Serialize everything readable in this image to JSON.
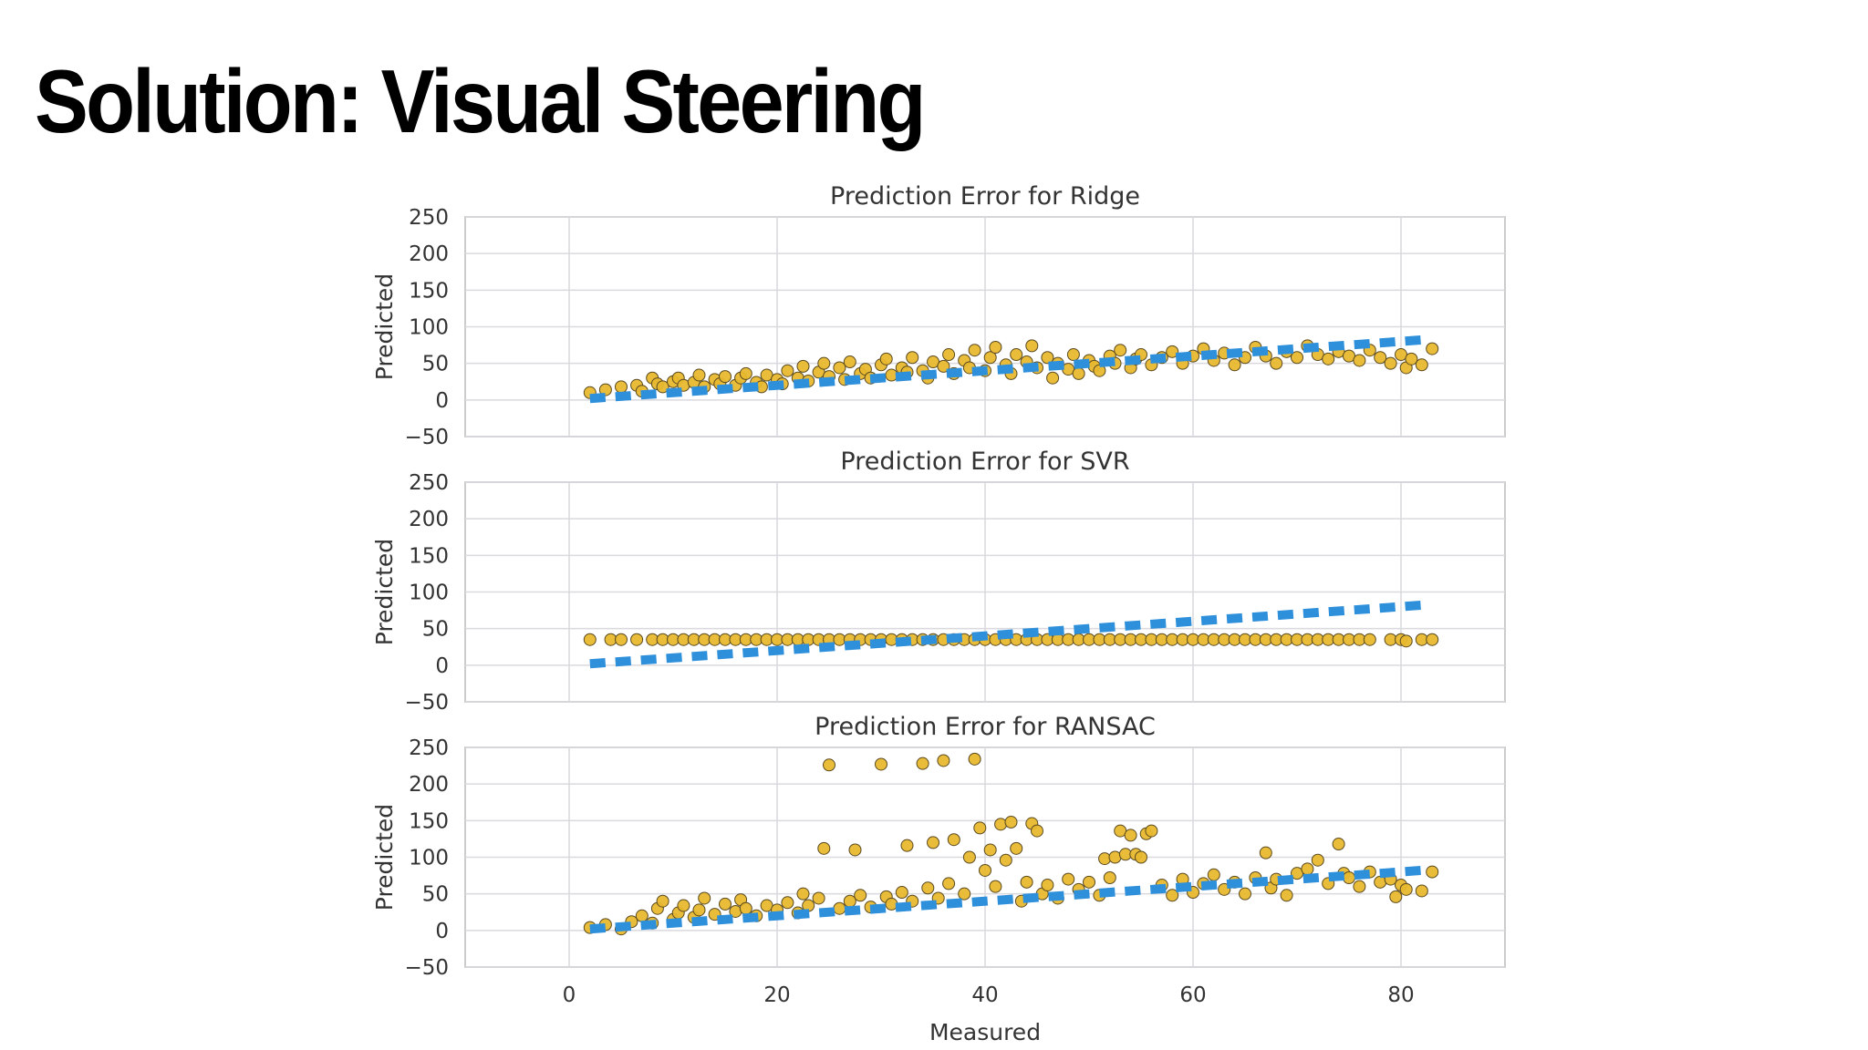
{
  "slide": {
    "title": "Solution: Visual Steering"
  },
  "colors": {
    "points": "#e8b82e",
    "point_edge": "#5a4a20",
    "identity_line": "#2e8fdb",
    "grid": "#d9d9de",
    "frame": "#cccccc"
  },
  "chart_data": {
    "type": "scatter",
    "xlabel": "Measured",
    "xlim": [
      -10,
      90
    ],
    "xticks": [
      0,
      20,
      40,
      60,
      80
    ],
    "grid": true,
    "panels": [
      {
        "title": "Prediction Error for Ridge",
        "ylabel": "Predicted",
        "ylim": [
          -50,
          250
        ],
        "yticks": [
          -50,
          0,
          50,
          100,
          150,
          200,
          250
        ],
        "identity_line": [
          [
            2,
            2
          ],
          [
            82,
            82
          ]
        ],
        "points": [
          [
            2,
            10
          ],
          [
            3.5,
            14
          ],
          [
            5,
            18
          ],
          [
            6.5,
            20
          ],
          [
            7,
            12
          ],
          [
            8,
            30
          ],
          [
            8.5,
            22
          ],
          [
            9,
            18
          ],
          [
            10,
            25
          ],
          [
            10.5,
            30
          ],
          [
            11,
            20
          ],
          [
            12,
            24
          ],
          [
            12.5,
            34
          ],
          [
            13,
            18
          ],
          [
            14,
            28
          ],
          [
            14.5,
            22
          ],
          [
            15,
            32
          ],
          [
            16,
            20
          ],
          [
            16.5,
            30
          ],
          [
            17,
            36
          ],
          [
            18,
            24
          ],
          [
            18.5,
            18
          ],
          [
            19,
            34
          ],
          [
            20,
            28
          ],
          [
            20.5,
            22
          ],
          [
            21,
            40
          ],
          [
            22,
            30
          ],
          [
            22.5,
            46
          ],
          [
            23,
            26
          ],
          [
            24,
            38
          ],
          [
            24.5,
            50
          ],
          [
            25,
            32
          ],
          [
            26,
            44
          ],
          [
            26.5,
            28
          ],
          [
            27,
            52
          ],
          [
            28,
            36
          ],
          [
            28.5,
            42
          ],
          [
            29,
            30
          ],
          [
            30,
            48
          ],
          [
            30.5,
            56
          ],
          [
            31,
            34
          ],
          [
            32,
            44
          ],
          [
            32.5,
            38
          ],
          [
            33,
            58
          ],
          [
            34,
            40
          ],
          [
            34.5,
            30
          ],
          [
            35,
            52
          ],
          [
            36,
            46
          ],
          [
            36.5,
            62
          ],
          [
            37,
            36
          ],
          [
            38,
            54
          ],
          [
            38.5,
            44
          ],
          [
            39,
            68
          ],
          [
            40,
            40
          ],
          [
            40.5,
            58
          ],
          [
            41,
            72
          ],
          [
            42,
            48
          ],
          [
            42.5,
            36
          ],
          [
            43,
            62
          ],
          [
            44,
            52
          ],
          [
            44.5,
            74
          ],
          [
            45,
            44
          ],
          [
            46,
            58
          ],
          [
            46.5,
            30
          ],
          [
            47,
            50
          ],
          [
            48,
            42
          ],
          [
            48.5,
            62
          ],
          [
            49,
            36
          ],
          [
            50,
            54
          ],
          [
            50.5,
            46
          ],
          [
            51,
            40
          ],
          [
            52,
            60
          ],
          [
            52.5,
            50
          ],
          [
            53,
            68
          ],
          [
            54,
            44
          ],
          [
            54.5,
            56
          ],
          [
            55,
            62
          ],
          [
            56,
            48
          ],
          [
            57,
            58
          ],
          [
            58,
            66
          ],
          [
            59,
            50
          ],
          [
            60,
            60
          ],
          [
            61,
            70
          ],
          [
            62,
            54
          ],
          [
            63,
            64
          ],
          [
            64,
            48
          ],
          [
            65,
            58
          ],
          [
            66,
            72
          ],
          [
            67,
            60
          ],
          [
            68,
            50
          ],
          [
            69,
            66
          ],
          [
            70,
            58
          ],
          [
            71,
            74
          ],
          [
            72,
            62
          ],
          [
            73,
            56
          ],
          [
            74,
            66
          ],
          [
            75,
            60
          ],
          [
            76,
            54
          ],
          [
            77,
            68
          ],
          [
            78,
            58
          ],
          [
            79,
            50
          ],
          [
            80,
            62
          ],
          [
            80.5,
            44
          ],
          [
            81,
            56
          ],
          [
            82,
            48
          ],
          [
            83,
            70
          ]
        ]
      },
      {
        "title": "Prediction Error for SVR",
        "ylabel": "Predicted",
        "ylim": [
          -50,
          250
        ],
        "yticks": [
          -50,
          0,
          50,
          100,
          150,
          200,
          250
        ],
        "identity_line": [
          [
            2,
            2
          ],
          [
            82,
            82
          ]
        ],
        "points": [
          [
            2,
            35
          ],
          [
            4,
            35
          ],
          [
            5,
            35
          ],
          [
            6.5,
            35
          ],
          [
            8,
            35
          ],
          [
            9,
            35
          ],
          [
            10,
            35
          ],
          [
            11,
            35
          ],
          [
            12,
            35
          ],
          [
            13,
            35
          ],
          [
            14,
            35
          ],
          [
            15,
            35
          ],
          [
            16,
            35
          ],
          [
            17,
            35
          ],
          [
            18,
            35
          ],
          [
            19,
            35
          ],
          [
            20,
            35
          ],
          [
            21,
            35
          ],
          [
            22,
            35
          ],
          [
            23,
            35
          ],
          [
            24,
            35
          ],
          [
            25,
            35
          ],
          [
            26,
            35
          ],
          [
            27,
            35
          ],
          [
            28,
            35
          ],
          [
            29,
            35
          ],
          [
            30,
            35
          ],
          [
            31,
            35
          ],
          [
            32,
            35
          ],
          [
            33,
            35
          ],
          [
            34,
            35
          ],
          [
            35,
            35
          ],
          [
            36,
            35
          ],
          [
            37,
            35
          ],
          [
            38,
            35
          ],
          [
            39,
            35
          ],
          [
            40,
            35
          ],
          [
            41,
            35
          ],
          [
            42,
            35
          ],
          [
            43,
            35
          ],
          [
            44,
            35
          ],
          [
            45,
            35
          ],
          [
            46,
            35
          ],
          [
            47,
            35
          ],
          [
            48,
            35
          ],
          [
            49,
            35
          ],
          [
            50,
            35
          ],
          [
            51,
            35
          ],
          [
            52,
            35
          ],
          [
            53,
            35
          ],
          [
            54,
            35
          ],
          [
            55,
            35
          ],
          [
            56,
            35
          ],
          [
            57,
            35
          ],
          [
            58,
            35
          ],
          [
            59,
            35
          ],
          [
            60,
            35
          ],
          [
            61,
            35
          ],
          [
            62,
            35
          ],
          [
            63,
            35
          ],
          [
            64,
            35
          ],
          [
            65,
            35
          ],
          [
            66,
            35
          ],
          [
            67,
            35
          ],
          [
            68,
            35
          ],
          [
            69,
            35
          ],
          [
            70,
            35
          ],
          [
            71,
            35
          ],
          [
            72,
            35
          ],
          [
            73,
            35
          ],
          [
            74,
            35
          ],
          [
            75,
            35
          ],
          [
            76,
            35
          ],
          [
            77,
            35
          ],
          [
            79,
            35
          ],
          [
            80,
            35
          ],
          [
            80.5,
            33
          ],
          [
            82,
            35
          ],
          [
            83,
            35
          ]
        ]
      },
      {
        "title": "Prediction Error for RANSAC",
        "ylabel": "Predicted",
        "ylim": [
          -50,
          250
        ],
        "yticks": [
          -50,
          0,
          50,
          100,
          150,
          200,
          250
        ],
        "identity_line": [
          [
            2,
            2
          ],
          [
            82,
            82
          ]
        ],
        "points": [
          [
            2,
            4
          ],
          [
            3.5,
            8
          ],
          [
            5,
            2
          ],
          [
            6,
            12
          ],
          [
            7,
            20
          ],
          [
            8,
            10
          ],
          [
            8.5,
            30
          ],
          [
            9,
            40
          ],
          [
            10,
            15
          ],
          [
            10.5,
            24
          ],
          [
            11,
            34
          ],
          [
            12,
            18
          ],
          [
            12.5,
            28
          ],
          [
            13,
            44
          ],
          [
            14,
            22
          ],
          [
            15,
            36
          ],
          [
            16,
            26
          ],
          [
            16.5,
            42
          ],
          [
            17,
            30
          ],
          [
            18,
            20
          ],
          [
            19,
            34
          ],
          [
            20,
            28
          ],
          [
            21,
            38
          ],
          [
            22,
            24
          ],
          [
            22.5,
            50
          ],
          [
            23,
            34
          ],
          [
            24,
            44
          ],
          [
            24.5,
            112
          ],
          [
            25,
            226
          ],
          [
            26,
            30
          ],
          [
            27,
            40
          ],
          [
            27.5,
            110
          ],
          [
            28,
            48
          ],
          [
            29,
            32
          ],
          [
            30,
            227
          ],
          [
            30.5,
            46
          ],
          [
            31,
            36
          ],
          [
            32,
            52
          ],
          [
            32.5,
            116
          ],
          [
            33,
            40
          ],
          [
            34,
            228
          ],
          [
            34.5,
            58
          ],
          [
            35,
            120
          ],
          [
            35.5,
            44
          ],
          [
            36,
            232
          ],
          [
            36.5,
            64
          ],
          [
            37,
            124
          ],
          [
            38,
            50
          ],
          [
            38.5,
            100
          ],
          [
            39,
            234
          ],
          [
            39.5,
            140
          ],
          [
            40,
            82
          ],
          [
            40.5,
            110
          ],
          [
            41,
            60
          ],
          [
            41.5,
            145
          ],
          [
            42,
            96
          ],
          [
            42.5,
            148
          ],
          [
            43,
            112
          ],
          [
            43.5,
            40
          ],
          [
            44,
            66
          ],
          [
            44.5,
            146
          ],
          [
            45,
            136
          ],
          [
            45.5,
            50
          ],
          [
            46,
            62
          ],
          [
            47,
            44
          ],
          [
            48,
            70
          ],
          [
            49,
            56
          ],
          [
            50,
            66
          ],
          [
            51,
            48
          ],
          [
            51.5,
            98
          ],
          [
            52,
            72
          ],
          [
            52.5,
            100
          ],
          [
            53,
            136
          ],
          [
            53.5,
            104
          ],
          [
            54,
            130
          ],
          [
            54.5,
            104
          ],
          [
            55,
            100
          ],
          [
            55.5,
            132
          ],
          [
            56,
            136
          ],
          [
            57,
            62
          ],
          [
            58,
            48
          ],
          [
            59,
            70
          ],
          [
            60,
            52
          ],
          [
            61,
            64
          ],
          [
            62,
            76
          ],
          [
            63,
            56
          ],
          [
            64,
            66
          ],
          [
            65,
            50
          ],
          [
            66,
            72
          ],
          [
            67,
            106
          ],
          [
            67.5,
            58
          ],
          [
            68,
            70
          ],
          [
            69,
            48
          ],
          [
            70,
            78
          ],
          [
            71,
            84
          ],
          [
            72,
            96
          ],
          [
            73,
            64
          ],
          [
            74,
            118
          ],
          [
            74.5,
            78
          ],
          [
            75,
            72
          ],
          [
            76,
            60
          ],
          [
            77,
            80
          ],
          [
            78,
            66
          ],
          [
            79,
            70
          ],
          [
            79.5,
            46
          ],
          [
            80,
            62
          ],
          [
            80.5,
            56
          ],
          [
            82,
            54
          ],
          [
            83,
            80
          ]
        ]
      }
    ]
  }
}
